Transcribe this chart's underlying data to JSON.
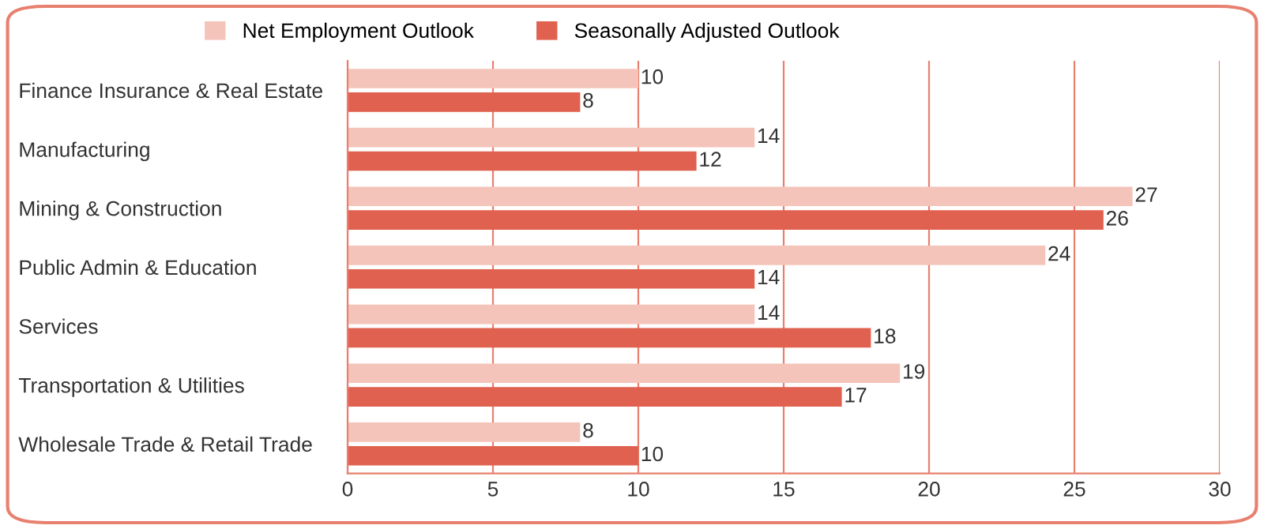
{
  "chart_data": {
    "type": "bar",
    "orientation": "horizontal",
    "categories": [
      "Finance Insurance & Real Estate",
      "Manufacturing",
      "Mining & Construction",
      "Public Admin & Education",
      "Services",
      "Transportation & Utilities",
      "Wholesale Trade & Retail Trade"
    ],
    "series": [
      {
        "name": "Net Employment Outlook",
        "color": "#f4c4ba",
        "values": [
          10,
          14,
          27,
          24,
          14,
          19,
          8
        ]
      },
      {
        "name": "Seasonally Adjusted Outlook",
        "color": "#e0614f",
        "values": [
          8,
          12,
          26,
          14,
          18,
          17,
          10
        ]
      }
    ],
    "xlim": [
      0,
      30
    ],
    "xticks": [
      0,
      5,
      10,
      15,
      20,
      25,
      30
    ],
    "grid": "x",
    "legend": "top",
    "data_labels": true
  }
}
